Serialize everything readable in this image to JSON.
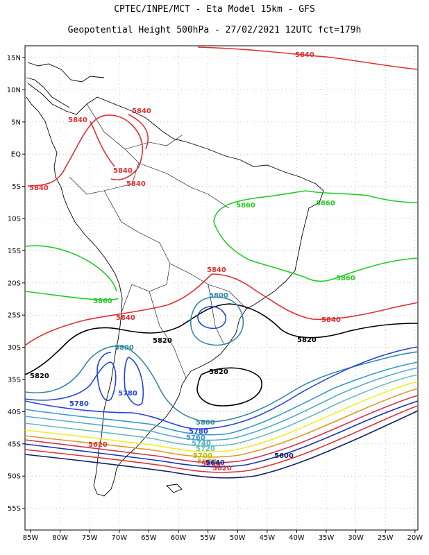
{
  "header": {
    "line1": "CPTEC/INPE/MCT -  Eta Model 15km - GFS",
    "line2": "Geopotential Height 500hPa - 27/02/2021 12UTC fct=179h"
  },
  "map": {
    "lat_labels": [
      "15N",
      "10N",
      "5N",
      "EQ",
      "5S",
      "10S",
      "15S",
      "20S",
      "25S",
      "30S",
      "35S",
      "40S",
      "45S",
      "50S",
      "55S"
    ],
    "lon_labels": [
      "85W",
      "80W",
      "75W",
      "70W",
      "65W",
      "60W",
      "55W",
      "50W",
      "45W",
      "40W",
      "35W",
      "30W",
      "25W",
      "20W"
    ],
    "grid": true
  },
  "contours": [
    {
      "value": "5840",
      "color": "#e03030",
      "labels": [
        "5840",
        "5840",
        "5840",
        "5840",
        "5840",
        "5840",
        "5840",
        "5840"
      ]
    },
    {
      "value": "5860",
      "color": "#22cc22",
      "labels": [
        "5860",
        "5860",
        "5860",
        "5860"
      ]
    },
    {
      "value": "5820",
      "color": "#000000",
      "labels": [
        "5820",
        "5820",
        "5820",
        "5820"
      ]
    },
    {
      "value": "5800",
      "color": "#3388aa",
      "labels": [
        "5800",
        "5800",
        "5800"
      ]
    },
    {
      "value": "5780",
      "color": "#2244dd",
      "labels": [
        "5780",
        "5780",
        "5780"
      ]
    },
    {
      "value": "5760",
      "color": "#3399cc",
      "labels": [
        "5760"
      ]
    },
    {
      "value": "5740",
      "color": "#55aacc",
      "labels": [
        "5740"
      ]
    },
    {
      "value": "5720",
      "color": "#66bbbb",
      "labels": [
        "5720"
      ]
    },
    {
      "value": "5700",
      "color": "#eeee22",
      "labels": [
        "5700"
      ]
    },
    {
      "value": "5680",
      "color": "#dd9922",
      "labels": [
        "5680"
      ]
    },
    {
      "value": "5660",
      "color": "#cc3355",
      "labels": [
        "5660"
      ]
    },
    {
      "value": "5640",
      "color": "#1133aa",
      "labels": [
        "5640"
      ]
    },
    {
      "value": "5620",
      "color": "#dd3333",
      "labels": [
        "5620",
        "5620"
      ]
    },
    {
      "value": "5600",
      "color": "#112266",
      "labels": [
        "5600"
      ]
    }
  ]
}
